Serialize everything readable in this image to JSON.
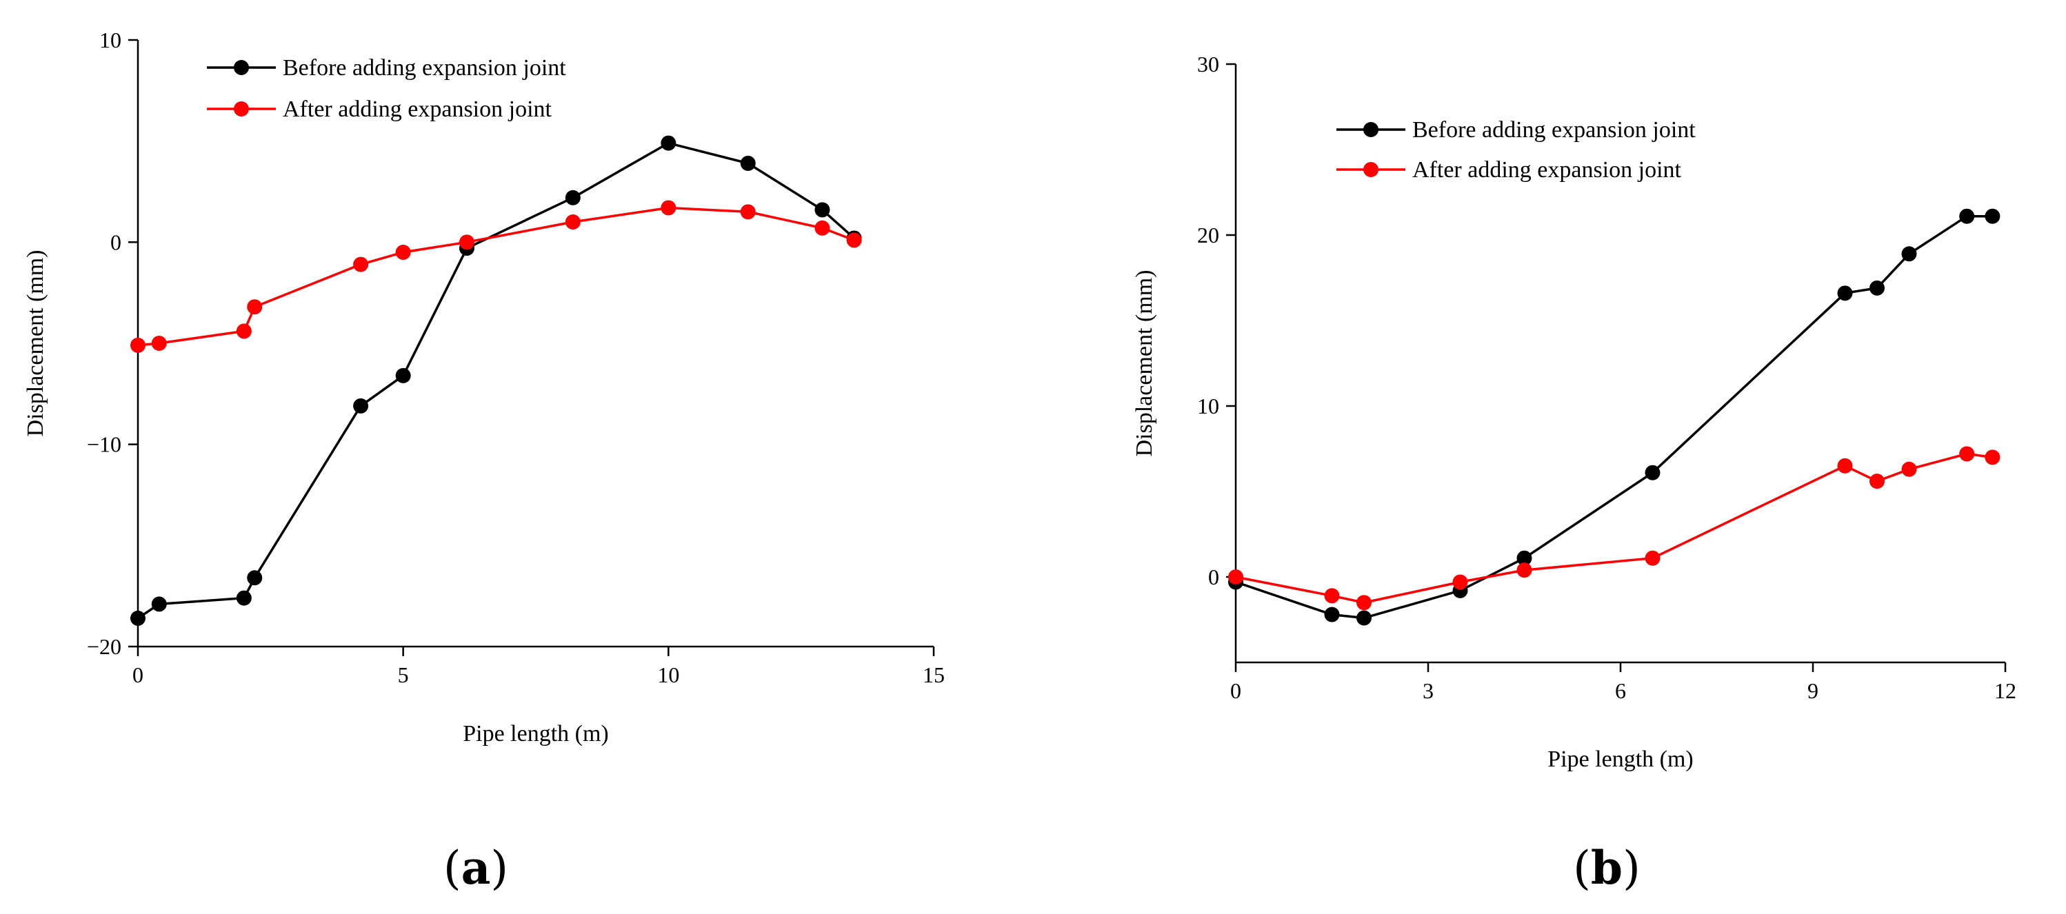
{
  "chart_data": [
    {
      "type": "line",
      "panel_label": "a",
      "xlabel": "Pipe length (m)",
      "ylabel": "Displacement (mm)",
      "xlim": [
        0,
        15
      ],
      "ylim": [
        -20,
        10
      ],
      "xticks": [
        0,
        5,
        10,
        15
      ],
      "yticks": [
        -20,
        -10,
        0,
        10
      ],
      "xtick_labels": [
        "0",
        "5",
        "10",
        "15"
      ],
      "ytick_labels": [
        "−20",
        "−10",
        "0",
        "10"
      ],
      "grid": false,
      "legend_position": "top-left",
      "series": [
        {
          "name": "Before adding expansion joint",
          "color": "#000000",
          "x": [
            0,
            0.4,
            2.0,
            2.2,
            4.2,
            5.0,
            6.2,
            8.2,
            10.0,
            11.5,
            12.9,
            13.5
          ],
          "y": [
            -18.6,
            -17.9,
            -17.6,
            -16.6,
            -8.1,
            -6.6,
            -0.3,
            2.2,
            4.9,
            3.9,
            1.6,
            0.2
          ]
        },
        {
          "name": "After adding expansion joint",
          "color": "#ff0000",
          "x": [
            0,
            0.4,
            2.0,
            2.2,
            4.2,
            5.0,
            6.2,
            8.2,
            10.0,
            11.5,
            12.9,
            13.5
          ],
          "y": [
            -5.1,
            -5.0,
            -4.4,
            -3.2,
            -1.1,
            -0.5,
            0.0,
            1.0,
            1.7,
            1.5,
            0.7,
            0.1
          ]
        }
      ]
    },
    {
      "type": "line",
      "panel_label": "b",
      "xlabel": "Pipe length (m)",
      "ylabel": "Displacement (mm)",
      "xlim": [
        0,
        12
      ],
      "ylim": [
        -5,
        30
      ],
      "xticks": [
        0,
        3,
        6,
        9,
        12
      ],
      "yticks": [
        0,
        10,
        20,
        30
      ],
      "xtick_labels": [
        "0",
        "3",
        "6",
        "9",
        "12"
      ],
      "ytick_labels": [
        "0",
        "10",
        "20",
        "30"
      ],
      "grid": false,
      "legend_position": "top-left",
      "series": [
        {
          "name": "Before adding expansion joint",
          "color": "#000000",
          "x": [
            0,
            1.5,
            2.0,
            3.5,
            4.5,
            6.5,
            9.5,
            10.0,
            10.5,
            11.4,
            11.8
          ],
          "y": [
            -0.3,
            -2.2,
            -2.4,
            -0.8,
            1.1,
            6.1,
            16.6,
            16.9,
            18.9,
            21.1,
            21.1
          ]
        },
        {
          "name": "After adding expansion joint",
          "color": "#ff0000",
          "x": [
            0,
            1.5,
            2.0,
            3.5,
            4.5,
            6.5,
            9.5,
            10.0,
            10.5,
            11.4,
            11.8
          ],
          "y": [
            0.0,
            -1.1,
            -1.5,
            -0.3,
            0.4,
            1.1,
            6.5,
            5.6,
            6.3,
            7.2,
            7.0
          ]
        }
      ]
    }
  ]
}
